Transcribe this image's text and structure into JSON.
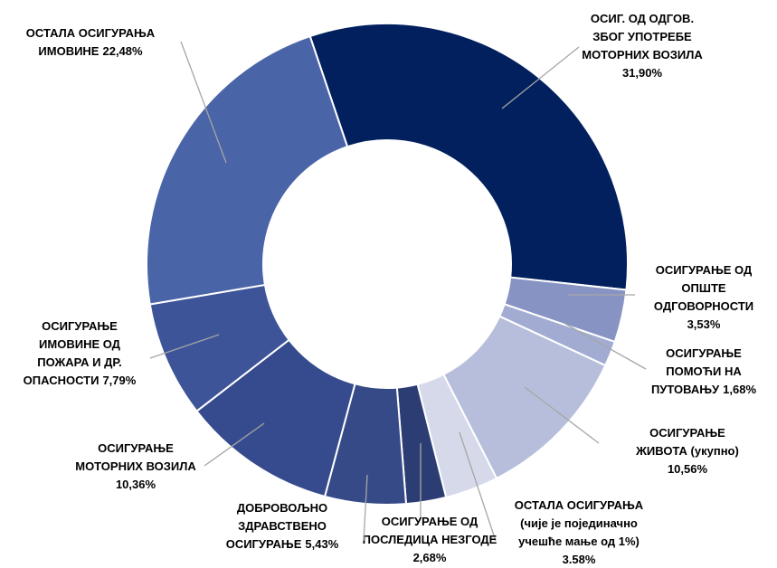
{
  "chart_data": {
    "type": "donut",
    "categories": [
      [
        "ОСИГ. ОД ОДГОВ.",
        "ЗБОГ УПОТРЕБЕ",
        "МОТОРНИХ ВОЗИЛА"
      ],
      [
        "ОСИГУРАЊЕ ОД",
        "ОПШТЕ",
        "ОДГОВОРНОСТИ"
      ],
      [
        "ОСИГУРАЊЕ",
        "ПОМОЋИ НА",
        "ПУТОВАЊУ"
      ],
      [
        "ОСИГУРАЊЕ",
        "ЖИВОТА (укупно)"
      ],
      [
        "ОСТАЛА ОСИГУРАЊА",
        "(чије је појединачно",
        "учешће мање од 1%)"
      ],
      [
        "ОСИГУРАЊЕ ОД",
        "ПОСЛЕДИЦА НЕЗГОДЕ"
      ],
      [
        "ДОБРОВОЉНО",
        "ЗДРАВСТВЕНО",
        "ОСИГУРАЊЕ"
      ],
      [
        "ОСИГУРАЊЕ",
        "МОТОРНИХ ВОЗИЛА"
      ],
      [
        "ОСИГУРАЊЕ",
        "ИМОВИНЕ ОД",
        "ПОЖАРА И ДР.",
        "ОПАСНОСТИ"
      ],
      [
        "ОСТАЛА ОСИГУРАЊА",
        "ИМОВИНЕ"
      ]
    ],
    "values": [
      31.9,
      3.53,
      1.68,
      10.56,
      3.58,
      2.68,
      5.43,
      10.36,
      7.79,
      22.48
    ],
    "value_labels": [
      "31,90%",
      "3,53%",
      "1,68%",
      "10,56%",
      "3.58%",
      "2,68%",
      "5,43%",
      "10,36%",
      "7,79%",
      "22,48%"
    ],
    "colors": [
      "#02205e",
      "#8794c3",
      "#a2abd2",
      "#b7bedb",
      "#d5d9ea",
      "#2c3d73",
      "#364a88",
      "#364b8d",
      "#3d5498",
      "#4a64a8"
    ]
  }
}
